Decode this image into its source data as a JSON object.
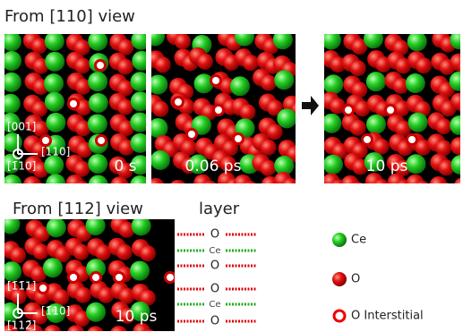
{
  "top_section": {
    "title": "From [110] view",
    "axes": {
      "up": "[001]",
      "right": "[110]",
      "out": "[1̄10]"
    },
    "panels": [
      {
        "time": "0 s"
      },
      {
        "time": "0.06 ps"
      },
      {
        "time": "10 ps"
      }
    ]
  },
  "bottom_section": {
    "title": "From [112] view",
    "layer_header": "layer",
    "axes": {
      "up": "[1̄1̄1]",
      "right": "[1̄10]",
      "out": "[112̄]"
    },
    "time": "10 ps",
    "layers": [
      "O",
      "Ce",
      "O",
      "O",
      "Ce",
      "O"
    ]
  },
  "legend": [
    {
      "label": "Ce"
    },
    {
      "label": "O"
    },
    {
      "label": "O Interstitial"
    }
  ]
}
